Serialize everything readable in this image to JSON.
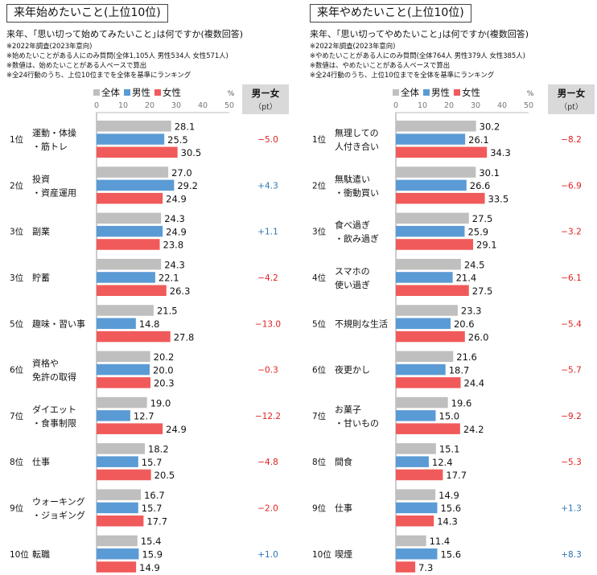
{
  "legend": {
    "all": "全体",
    "male": "男性",
    "female": "女性",
    "unit": "%"
  },
  "colors": {
    "all": "#bfbfbf",
    "male": "#5b9bd5",
    "female": "#f15a5a",
    "diff_neg": "#e02020",
    "diff_pos": "#2e74b5",
    "diff_header_bg": "#d9d9d9"
  },
  "diff_header": {
    "line1": "男ー女",
    "line2": "（pt）"
  },
  "chart_data": [
    {
      "type": "bar",
      "title": "来年始めたいこと(上位10位)",
      "question": "来年、｢思い切って始めてみたいこと｣は何ですか(複数回答)",
      "notes": [
        "※2022年調査(2023年意向)",
        "※始めたいことがある人にのみ質問(全体1,105人 男性534人 女性571人)",
        "※数値は、始めたいことがある人ベースで算出",
        "※全24行動のうち、上位10位までを全体を基準にランキング"
      ],
      "xlim": [
        0,
        50
      ],
      "xticks": [
        "0",
        "10",
        "20",
        "30",
        "40",
        "50"
      ],
      "ranks": [
        "1位",
        "2位",
        "3位",
        "3位",
        "5位",
        "6位",
        "7位",
        "8位",
        "9位",
        "10位"
      ],
      "categories": [
        [
          "運動・体操",
          "・筋トレ"
        ],
        [
          "投資",
          "・資産運用"
        ],
        [
          "副業"
        ],
        [
          "貯蓄"
        ],
        [
          "趣味・習い事"
        ],
        [
          "資格や",
          "免許の取得"
        ],
        [
          "ダイエット",
          "・食事制限"
        ],
        [
          "仕事"
        ],
        [
          "ウォーキング",
          "・ジョギング"
        ],
        [
          "転職"
        ]
      ],
      "series": [
        {
          "name": "全体",
          "values": [
            28.1,
            27.0,
            24.3,
            24.3,
            21.5,
            20.2,
            19.0,
            18.2,
            16.7,
            15.4
          ]
        },
        {
          "name": "男性",
          "values": [
            25.5,
            29.2,
            24.9,
            22.1,
            14.8,
            20.0,
            12.7,
            15.7,
            15.7,
            15.9
          ]
        },
        {
          "name": "女性",
          "values": [
            30.5,
            24.9,
            23.8,
            26.3,
            27.8,
            20.3,
            24.9,
            20.5,
            17.7,
            14.9
          ]
        }
      ],
      "diff": [
        "−5.0",
        "+4.3",
        "+1.1",
        "−4.2",
        "−13.0",
        "−0.3",
        "−12.2",
        "−4.8",
        "−2.0",
        "+1.0"
      ]
    },
    {
      "type": "bar",
      "title": "来年やめたいこと(上位10位)",
      "question": "来年、｢思い切ってやめたいこと｣は何ですか(複数回答)",
      "notes": [
        "※2022年調査(2023年意向)",
        "※やめたいことがある人にのみ質問(全体764人 男性379人 女性385人)",
        "※数値は、やめたいことがある人ベースで算出",
        "※全24行動のうち、上位10位までを全体を基準にランキング"
      ],
      "xlim": [
        0,
        50
      ],
      "xticks": [
        "0",
        "10",
        "20",
        "30",
        "40",
        "50"
      ],
      "ranks": [
        "1位",
        "2位",
        "3位",
        "4位",
        "5位",
        "6位",
        "7位",
        "8位",
        "9位",
        "10位"
      ],
      "categories": [
        [
          "無理しての",
          "人付き合い"
        ],
        [
          "無駄遣い",
          "・衝動買い"
        ],
        [
          "食べ過ぎ",
          "・飲み過ぎ"
        ],
        [
          "スマホの",
          "使い過ぎ"
        ],
        [
          "不規則な生活"
        ],
        [
          "夜更かし"
        ],
        [
          "お菓子",
          "・甘いもの"
        ],
        [
          "間食"
        ],
        [
          "仕事"
        ],
        [
          "喫煙"
        ]
      ],
      "series": [
        {
          "name": "全体",
          "values": [
            30.2,
            30.1,
            27.5,
            24.5,
            23.3,
            21.6,
            19.6,
            15.1,
            14.9,
            11.4
          ]
        },
        {
          "name": "男性",
          "values": [
            26.1,
            26.6,
            25.9,
            21.4,
            20.6,
            18.7,
            15.0,
            12.4,
            15.6,
            15.6
          ]
        },
        {
          "name": "女性",
          "values": [
            34.3,
            33.5,
            29.1,
            27.5,
            26.0,
            24.4,
            24.2,
            17.7,
            14.3,
            7.3
          ]
        }
      ],
      "diff": [
        "−8.2",
        "−6.9",
        "−3.2",
        "−6.1",
        "−5.4",
        "−5.7",
        "−9.2",
        "−5.3",
        "+1.3",
        "+8.3"
      ]
    }
  ]
}
